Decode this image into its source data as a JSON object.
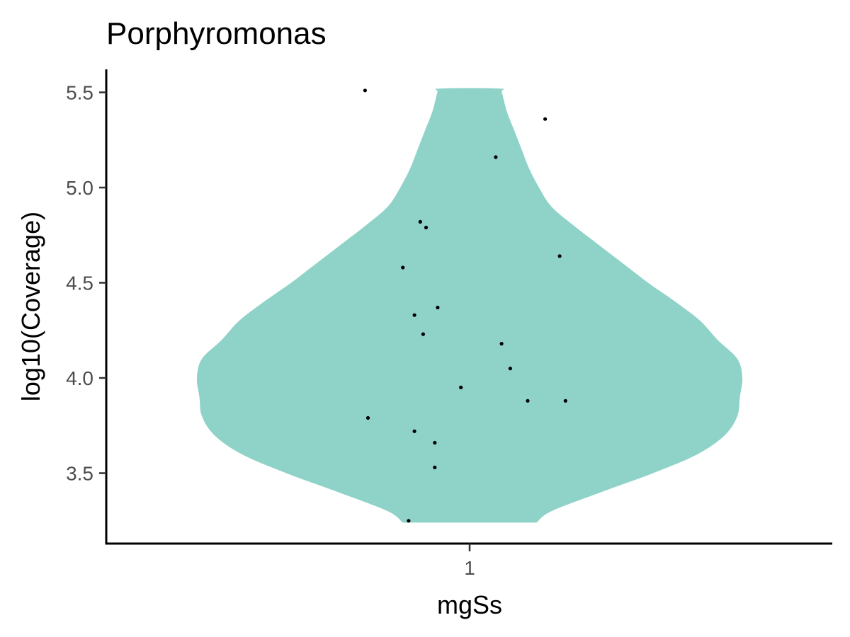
{
  "chart_data": {
    "type": "violin",
    "title": "Porphyromonas",
    "xlabel": "mgSs",
    "ylabel": "log10(Coverage)",
    "categories": [
      "1"
    ],
    "yticks": [
      "3.5",
      "4.0",
      "4.5",
      "5.0",
      "5.5"
    ],
    "ylim": [
      3.2,
      5.6
    ],
    "grid": false,
    "legend": "none",
    "violin": {
      "fill": "#8fd3c8",
      "density": [
        [
          3.24,
          0.27
        ],
        [
          3.3,
          0.33
        ],
        [
          3.4,
          0.53
        ],
        [
          3.5,
          0.74
        ],
        [
          3.6,
          0.92
        ],
        [
          3.7,
          1.03
        ],
        [
          3.8,
          1.08
        ],
        [
          3.9,
          1.09
        ],
        [
          4.0,
          1.1
        ],
        [
          4.1,
          1.08
        ],
        [
          4.2,
          1.0
        ],
        [
          4.3,
          0.93
        ],
        [
          4.4,
          0.83
        ],
        [
          4.5,
          0.72
        ],
        [
          4.6,
          0.62
        ],
        [
          4.7,
          0.52
        ],
        [
          4.8,
          0.42
        ],
        [
          4.9,
          0.33
        ],
        [
          5.0,
          0.28
        ],
        [
          5.1,
          0.24
        ],
        [
          5.2,
          0.21
        ],
        [
          5.3,
          0.18
        ],
        [
          5.4,
          0.15
        ],
        [
          5.5,
          0.13
        ],
        [
          5.52,
          0.12
        ]
      ]
    },
    "points": [
      {
        "x": 0.64,
        "y": 5.51
      },
      {
        "x": 1.26,
        "y": 5.36
      },
      {
        "x": 1.09,
        "y": 5.16
      },
      {
        "x": 0.83,
        "y": 4.82
      },
      {
        "x": 0.85,
        "y": 4.79
      },
      {
        "x": 1.31,
        "y": 4.64
      },
      {
        "x": 0.77,
        "y": 4.58
      },
      {
        "x": 0.89,
        "y": 4.37
      },
      {
        "x": 0.81,
        "y": 4.33
      },
      {
        "x": 0.84,
        "y": 4.23
      },
      {
        "x": 1.11,
        "y": 4.18
      },
      {
        "x": 1.14,
        "y": 4.05
      },
      {
        "x": 0.97,
        "y": 3.95
      },
      {
        "x": 1.2,
        "y": 3.88
      },
      {
        "x": 1.33,
        "y": 3.88
      },
      {
        "x": 0.65,
        "y": 3.79
      },
      {
        "x": 0.81,
        "y": 3.72
      },
      {
        "x": 0.88,
        "y": 3.66
      },
      {
        "x": 0.88,
        "y": 3.53
      },
      {
        "x": 0.79,
        "y": 3.25
      }
    ]
  }
}
